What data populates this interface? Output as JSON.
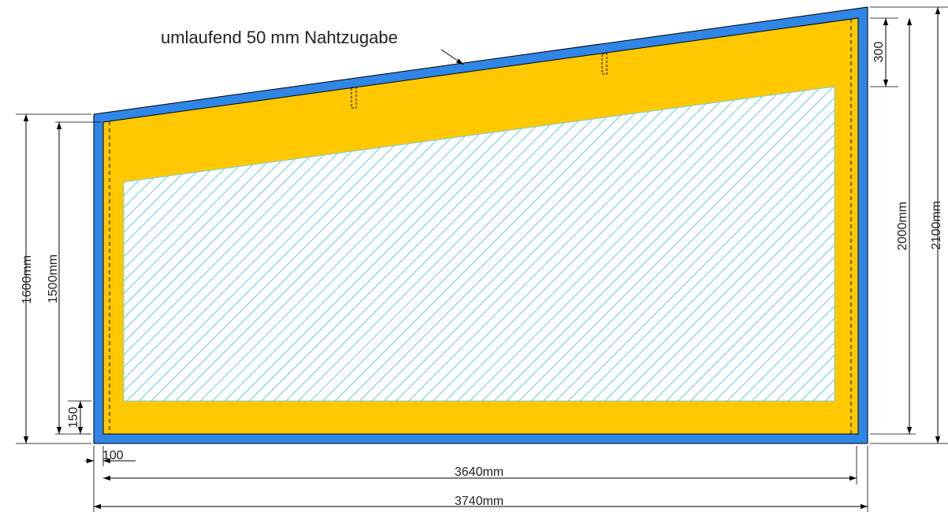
{
  "annotation": {
    "seam_note": "umlaufend 50 mm Nahtzugabe"
  },
  "dimensions": {
    "left_outer_height": "1600mm",
    "left_inner_height": "1500mm",
    "bottom_margin": "150",
    "left_margin": "100",
    "right_top_offset": "300",
    "right_inner_height": "2000mm",
    "right_outer_height": "2100mm",
    "inner_width": "3640mm",
    "outer_width": "3740mm"
  },
  "colors": {
    "seam_allowance": "#2f86e6",
    "panel": "#ffc800",
    "hatch": "#6fd0e0",
    "outline": "#000000"
  }
}
